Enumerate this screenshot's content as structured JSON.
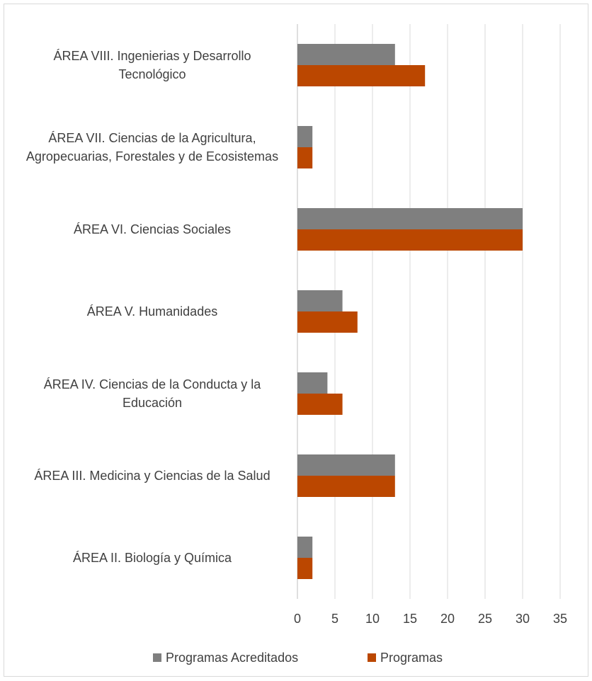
{
  "chart_data": {
    "type": "hbar",
    "categories": [
      "ÁREA VIII. Ingenierias y Desarrollo Tecnológico",
      "ÁREA VII. Ciencias de la Agricultura, Agropecuarias, Forestales y de Ecosistemas",
      "ÁREA VI. Ciencias Sociales",
      "ÁREA V. Humanidades",
      "ÁREA IV. Ciencias de la Conducta y la Educación",
      "ÁREA III. Medicina y Ciencias de la Salud",
      "ÁREA II. Biología y Química"
    ],
    "series": [
      {
        "name": "Programas Acreditados",
        "color": "#7f7f7f",
        "values": [
          13,
          2,
          30,
          6,
          4,
          13,
          2
        ]
      },
      {
        "name": "Programas",
        "color": "#bb4700",
        "values": [
          17,
          2,
          30,
          8,
          6,
          13,
          2
        ]
      }
    ],
    "xlim": [
      0,
      35
    ],
    "xticks": [
      0,
      5,
      10,
      15,
      20,
      25,
      30,
      35
    ],
    "grid": true,
    "legend": "bottom"
  }
}
